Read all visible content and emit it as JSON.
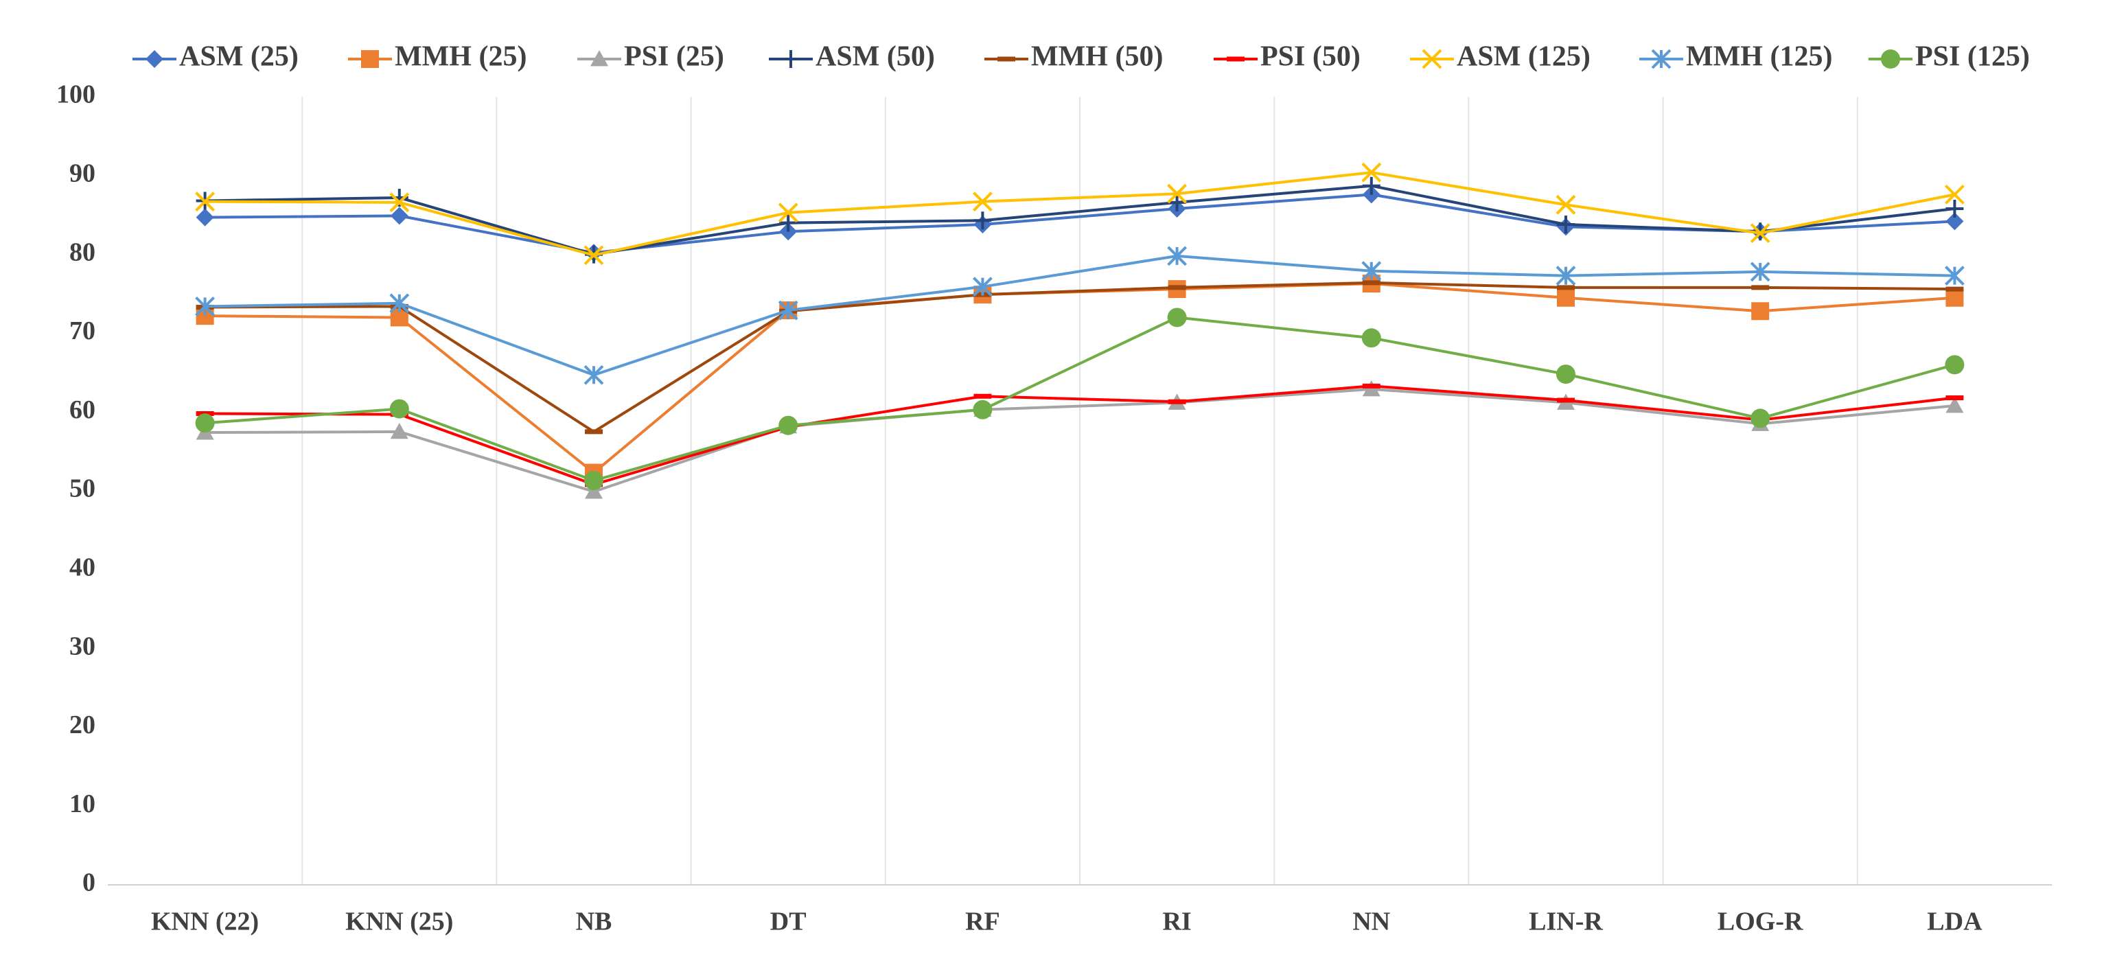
{
  "chart_data": {
    "type": "line",
    "categories": [
      "KNN (22)",
      "KNN (25)",
      "NB",
      "DT",
      "RF",
      "RI",
      "NN",
      "LIN-R",
      "LOG-R",
      "LDA"
    ],
    "series": [
      {
        "name": "ASM (25)",
        "color": "#4472c4",
        "marker": "diamond",
        "values": [
          84.7,
          84.9,
          80.2,
          82.9,
          83.8,
          85.8,
          87.6,
          83.5,
          82.9,
          84.2
        ]
      },
      {
        "name": "MMH (25)",
        "color": "#ed7d31",
        "marker": "square",
        "values": [
          72.2,
          72.0,
          52.3,
          72.9,
          74.9,
          75.6,
          76.3,
          74.5,
          72.8,
          74.5
        ]
      },
      {
        "name": "PSI (25)",
        "color": "#a5a5a5",
        "marker": "triangle",
        "values": [
          57.4,
          57.5,
          49.9,
          58.2,
          60.3,
          61.2,
          62.9,
          61.2,
          58.5,
          60.8
        ]
      },
      {
        "name": "ASM (50)",
        "color": "#264478",
        "marker": "plus",
        "values": [
          86.8,
          87.2,
          80.0,
          84.0,
          84.3,
          86.6,
          88.7,
          83.8,
          82.9,
          85.8
        ]
      },
      {
        "name": "MMH (50)",
        "color": "#9e480e",
        "marker": "dash",
        "values": [
          73.3,
          73.4,
          57.5,
          72.8,
          74.9,
          75.8,
          76.4,
          75.8,
          75.8,
          75.6
        ]
      },
      {
        "name": "PSI (50)",
        "color": "#ff0000",
        "marker": "dash",
        "values": [
          59.8,
          59.7,
          50.8,
          58.1,
          62.0,
          61.3,
          63.3,
          61.5,
          59.0,
          61.8
        ]
      },
      {
        "name": "ASM (125)",
        "color": "#ffc000",
        "marker": "x",
        "values": [
          86.7,
          86.6,
          79.9,
          85.3,
          86.7,
          87.7,
          90.4,
          86.3,
          82.7,
          87.6
        ]
      },
      {
        "name": "MMH (125)",
        "color": "#5b9bd5",
        "marker": "star",
        "values": [
          73.4,
          73.8,
          64.7,
          72.9,
          75.9,
          79.8,
          77.9,
          77.3,
          77.8,
          77.3
        ]
      },
      {
        "name": "PSI (125)",
        "color": "#70ad47",
        "marker": "circle",
        "values": [
          58.6,
          60.4,
          51.3,
          58.3,
          60.3,
          72.0,
          69.4,
          64.8,
          59.2,
          66.0
        ]
      }
    ],
    "ylim": [
      0,
      100
    ],
    "yticks": [
      0,
      10,
      20,
      30,
      40,
      50,
      60,
      70,
      80,
      90,
      100
    ],
    "grid": "vertical",
    "legend": "top"
  }
}
